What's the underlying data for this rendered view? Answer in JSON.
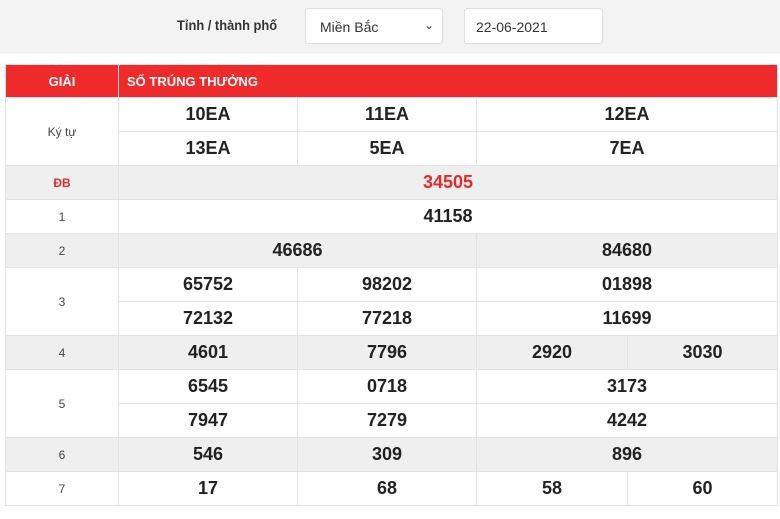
{
  "filter": {
    "label": "Tỉnh / thành phố",
    "province": "Miền Bắc",
    "date": "22-06-2021"
  },
  "table": {
    "headers": [
      "GIẢI",
      "SỐ TRÚNG THƯỞNG"
    ],
    "ky_tu": {
      "label": "Ký tự",
      "row1": [
        "10EA",
        "11EA",
        "12EA"
      ],
      "row2": [
        "13EA",
        "5EA",
        "7EA"
      ]
    },
    "db": {
      "label": "ĐB",
      "values": [
        "34505"
      ]
    },
    "g1": {
      "label": "1",
      "values": [
        "41158"
      ]
    },
    "g2": {
      "label": "2",
      "values": [
        "46686",
        "84680"
      ]
    },
    "g3": {
      "label": "3",
      "row1": [
        "65752",
        "98202",
        "01898"
      ],
      "row2": [
        "72132",
        "77218",
        "11699"
      ]
    },
    "g4": {
      "label": "4",
      "values": [
        "4601",
        "7796",
        "2920",
        "3030"
      ]
    },
    "g5": {
      "label": "5",
      "row1": [
        "6545",
        "0718",
        "3173"
      ],
      "row2": [
        "7947",
        "7279",
        "4242"
      ]
    },
    "g6": {
      "label": "6",
      "values": [
        "546",
        "309",
        "896"
      ]
    },
    "g7": {
      "label": "7",
      "values": [
        "17",
        "68",
        "58",
        "60"
      ]
    }
  },
  "colors": {
    "header": "#ee2a2a",
    "special": "#e52a2a"
  }
}
